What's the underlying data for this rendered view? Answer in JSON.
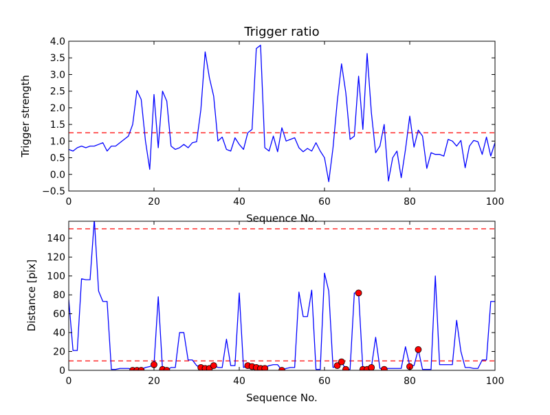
{
  "chart_data": [
    {
      "type": "line",
      "title": "Trigger ratio",
      "xlabel": "Sequence No.",
      "ylabel": "Trigger strength",
      "xlim": [
        0,
        100
      ],
      "ylim": [
        -0.5,
        4.0
      ],
      "xticks": [
        0,
        20,
        40,
        60,
        80,
        100
      ],
      "yticks": [
        -0.5,
        0.0,
        0.5,
        1.0,
        1.5,
        2.0,
        2.5,
        3.0,
        3.5,
        4.0
      ],
      "xtick_labels": [
        "0",
        "20",
        "40",
        "60",
        "80",
        "100"
      ],
      "ytick_labels": [
        "−0.5",
        "0.0",
        "0.5",
        "1.0",
        "1.5",
        "2.0",
        "2.5",
        "3.0",
        "3.5",
        "4.0"
      ],
      "threshold": 1.25,
      "colors": {
        "series": "#0000ff",
        "threshold": "#ff0000"
      },
      "series": [
        {
          "x": [
            0,
            1,
            2,
            3,
            4,
            5,
            6,
            7,
            8,
            9,
            10,
            11,
            12,
            13,
            14,
            15,
            16,
            17,
            18,
            19,
            20,
            21,
            22,
            23,
            24,
            25,
            26,
            27,
            28,
            29,
            30,
            31,
            32,
            33,
            34,
            35,
            36,
            37,
            38,
            39,
            40,
            41,
            42,
            43,
            44,
            45,
            46,
            47,
            48,
            49,
            50,
            51,
            52,
            53,
            54,
            55,
            56,
            57,
            58,
            59,
            60,
            61,
            62,
            63,
            64,
            65,
            66,
            67,
            68,
            69,
            70,
            71,
            72,
            73,
            74,
            75,
            76,
            77,
            78,
            79,
            80,
            81,
            82,
            83,
            84,
            85,
            86,
            87,
            88,
            89,
            90,
            91,
            92,
            93,
            94,
            95,
            96,
            97,
            98,
            99,
            100
          ],
          "y": [
            0.75,
            0.7,
            0.8,
            0.85,
            0.8,
            0.85,
            0.85,
            0.9,
            0.95,
            0.7,
            0.85,
            0.85,
            0.95,
            1.05,
            1.15,
            1.5,
            2.52,
            2.25,
            1.0,
            0.15,
            2.4,
            0.8,
            2.5,
            2.2,
            0.85,
            0.75,
            0.8,
            0.9,
            0.8,
            0.95,
            0.98,
            1.95,
            3.68,
            2.9,
            2.35,
            1.0,
            1.12,
            0.75,
            0.7,
            1.1,
            0.9,
            0.75,
            1.25,
            1.35,
            3.78,
            3.88,
            0.8,
            0.7,
            1.15,
            0.68,
            1.4,
            1.0,
            1.05,
            1.1,
            0.8,
            0.68,
            0.78,
            0.7,
            0.95,
            0.7,
            0.5,
            -0.22,
            0.8,
            2.2,
            3.32,
            2.45,
            1.05,
            1.15,
            2.95,
            1.35,
            3.63,
            1.85,
            0.65,
            0.85,
            1.5,
            -0.2,
            0.5,
            0.7,
            -0.1,
            0.75,
            1.75,
            0.82,
            1.33,
            1.15,
            0.18,
            0.65,
            0.6,
            0.6,
            0.55,
            1.05,
            1.0,
            0.85,
            1.02,
            0.2,
            0.85,
            1.02,
            0.98,
            0.6,
            1.12,
            0.55,
            0.95
          ]
        }
      ]
    },
    {
      "type": "line",
      "title": "",
      "xlabel": "Sequence No.",
      "ylabel": "Distance [pix]",
      "xlim": [
        0,
        100
      ],
      "ylim": [
        0,
        158
      ],
      "xticks": [
        0,
        20,
        40,
        60,
        80,
        100
      ],
      "yticks": [
        0,
        20,
        40,
        60,
        80,
        100,
        120,
        140
      ],
      "xtick_labels": [
        "0",
        "20",
        "40",
        "60",
        "80",
        "100"
      ],
      "ytick_labels": [
        "0",
        "20",
        "40",
        "60",
        "80",
        "100",
        "120",
        "140"
      ],
      "thresholds": [
        10,
        150
      ],
      "colors": {
        "series": "#0000ff",
        "threshold": "#ff0000",
        "markers": "#ff0000"
      },
      "series": [
        {
          "x": [
            0,
            1,
            2,
            3,
            4,
            5,
            6,
            7,
            8,
            9,
            10,
            11,
            12,
            13,
            14,
            15,
            16,
            17,
            18,
            19,
            20,
            21,
            22,
            23,
            24,
            25,
            26,
            27,
            28,
            29,
            30,
            31,
            32,
            33,
            34,
            35,
            36,
            37,
            38,
            39,
            40,
            41,
            42,
            43,
            44,
            45,
            46,
            47,
            48,
            49,
            50,
            51,
            52,
            53,
            54,
            55,
            56,
            57,
            58,
            59,
            60,
            61,
            62,
            63,
            64,
            65,
            66,
            67,
            68,
            69,
            70,
            71,
            72,
            73,
            74,
            75,
            76,
            77,
            78,
            79,
            80,
            81,
            82,
            83,
            84,
            85,
            86,
            87,
            88,
            89,
            90,
            91,
            92,
            93,
            94,
            95,
            96,
            97,
            98,
            99,
            100
          ],
          "y": [
            75,
            21,
            21,
            97,
            96,
            96,
            160,
            84,
            73,
            73,
            1,
            1,
            2,
            2,
            2,
            1,
            1,
            1,
            3,
            4,
            6,
            78,
            1,
            0,
            3,
            3,
            40,
            40,
            11,
            11,
            5,
            3,
            2,
            3,
            6,
            3,
            3,
            33,
            5,
            5,
            82,
            3,
            5,
            4,
            3,
            3,
            3,
            5,
            6,
            6,
            0,
            2,
            3,
            3,
            83,
            57,
            57,
            85,
            1,
            1,
            103,
            84,
            3,
            5,
            9,
            1,
            1,
            82,
            82,
            1,
            1,
            3,
            35,
            2,
            2,
            2,
            2,
            2,
            2,
            25,
            5,
            5,
            22,
            1,
            1,
            1,
            100,
            6,
            6,
            6,
            6,
            53,
            20,
            3,
            3,
            2,
            2,
            11,
            11,
            73,
            73
          ]
        },
        {
          "name": "markers",
          "style": "points",
          "x": [
            15,
            16,
            17,
            20,
            22,
            23,
            31,
            32,
            33,
            34,
            42,
            43,
            44,
            45,
            46,
            50,
            63,
            64,
            65,
            68,
            69,
            70,
            71,
            74,
            80,
            82
          ],
          "y": [
            0,
            0,
            0,
            6,
            1,
            0,
            3,
            2,
            2,
            5,
            5,
            4,
            3,
            2,
            2,
            0,
            5,
            9,
            1,
            82,
            1,
            1,
            3,
            1,
            4,
            22
          ]
        }
      ]
    }
  ]
}
